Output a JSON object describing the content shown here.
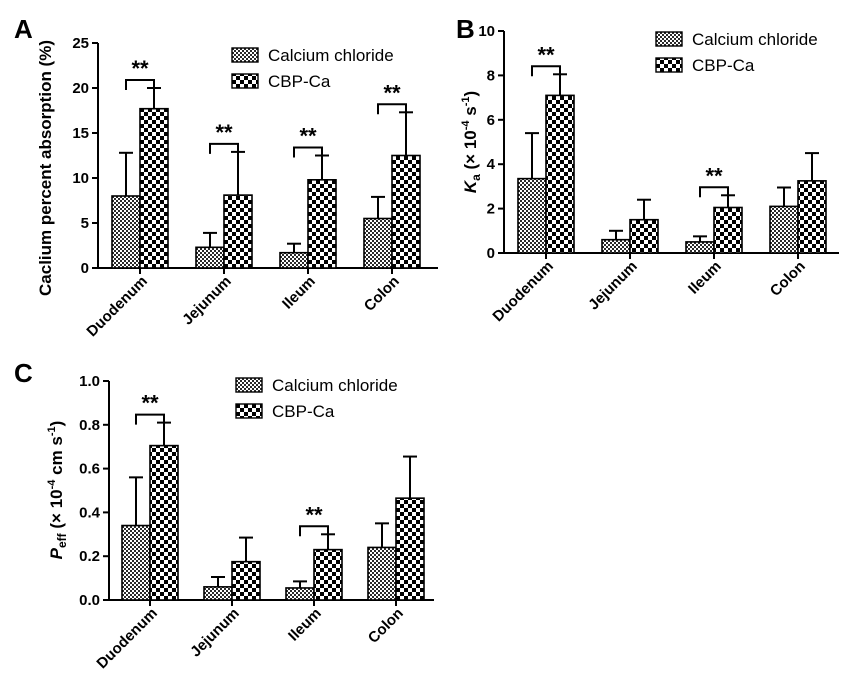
{
  "figure": {
    "legend_labels": [
      "Calcium chloride",
      "CBP-Ca"
    ],
    "significance_marker": "**"
  },
  "chart_data": [
    {
      "panel": "A",
      "type": "bar",
      "ylabel": "Caclium percent absorption (%)",
      "ylim": [
        0,
        25
      ],
      "yticks": [
        "0",
        "5",
        "10",
        "15",
        "20",
        "25"
      ],
      "categories": [
        "Duodenum",
        "Jejunum",
        "Ileum",
        "Colon"
      ],
      "series": [
        {
          "name": "Calcium chloride",
          "values": [
            8.0,
            2.3,
            1.7,
            5.5
          ],
          "errors": [
            4.8,
            1.6,
            1.0,
            2.4
          ],
          "pattern": "fine"
        },
        {
          "name": "CBP-Ca",
          "values": [
            17.7,
            8.1,
            9.8,
            12.5
          ],
          "errors": [
            2.3,
            4.8,
            2.7,
            4.8
          ],
          "pattern": "coarse"
        }
      ],
      "significant": [
        true,
        true,
        true,
        true
      ],
      "legend_position": "top-right"
    },
    {
      "panel": "B",
      "type": "bar",
      "ylabel": "Ka (× 10⁻⁴ s⁻¹)",
      "ylim": [
        0,
        10
      ],
      "yticks": [
        "0",
        "2",
        "4",
        "6",
        "8",
        "10"
      ],
      "categories": [
        "Duodenum",
        "Jejunum",
        "Ileum",
        "Colon"
      ],
      "series": [
        {
          "name": "Calcium chloride",
          "values": [
            3.35,
            0.6,
            0.5,
            2.1
          ],
          "errors": [
            2.05,
            0.4,
            0.25,
            0.85
          ],
          "pattern": "fine"
        },
        {
          "name": "CBP-Ca",
          "values": [
            7.1,
            1.5,
            2.05,
            3.25
          ],
          "errors": [
            0.95,
            0.9,
            0.55,
            1.25
          ],
          "pattern": "coarse"
        }
      ],
      "significant": [
        true,
        false,
        true,
        false
      ],
      "legend_position": "top-right"
    },
    {
      "panel": "C",
      "type": "bar",
      "ylabel": "Peff (× 10⁻⁴ cm s⁻¹)",
      "ylim": [
        0,
        1.0
      ],
      "yticks": [
        "0.0",
        "0.2",
        "0.4",
        "0.6",
        "0.8",
        "1.0"
      ],
      "categories": [
        "Duodenum",
        "Jejunum",
        "Ileum",
        "Colon"
      ],
      "series": [
        {
          "name": "Calcium chloride",
          "values": [
            0.34,
            0.06,
            0.055,
            0.24
          ],
          "errors": [
            0.22,
            0.045,
            0.03,
            0.11
          ],
          "pattern": "fine"
        },
        {
          "name": "CBP-Ca",
          "values": [
            0.705,
            0.175,
            0.23,
            0.465
          ],
          "errors": [
            0.105,
            0.11,
            0.07,
            0.19
          ],
          "pattern": "coarse"
        }
      ],
      "significant": [
        true,
        false,
        true,
        false
      ],
      "legend_position": "top-center"
    }
  ]
}
